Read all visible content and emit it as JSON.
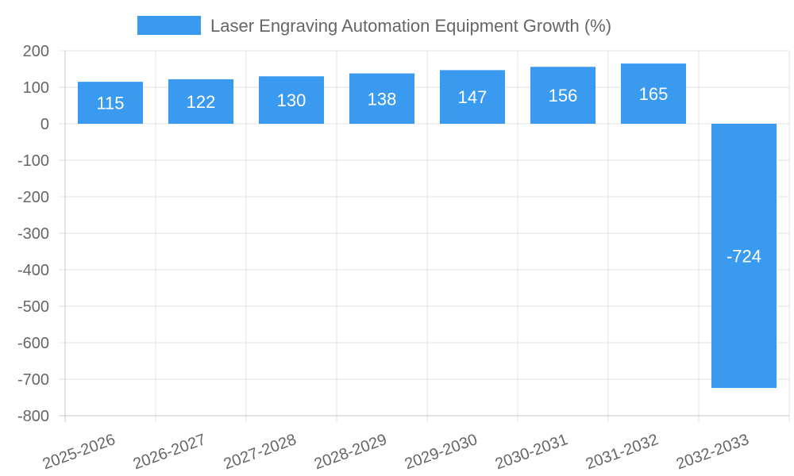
{
  "chart_data": {
    "type": "bar",
    "title": "",
    "xlabel": "",
    "ylabel": "",
    "categories": [
      "2025-2026",
      "2026-2027",
      "2027-2028",
      "2028-2029",
      "2029-2030",
      "2030-2031",
      "2031-2032",
      "2032-2033"
    ],
    "series": [
      {
        "name": "Laser Engraving Automation Equipment Growth (%)",
        "values": [
          115,
          122,
          130,
          138,
          147,
          156,
          165,
          -724
        ],
        "color": "#3a9af0"
      }
    ],
    "ylim": [
      -800,
      200
    ],
    "yticks": [
      200,
      100,
      0,
      -100,
      -200,
      -300,
      -400,
      -500,
      -600,
      -700,
      -800
    ],
    "grid": true,
    "legend": "top-center",
    "data_labels": true
  }
}
